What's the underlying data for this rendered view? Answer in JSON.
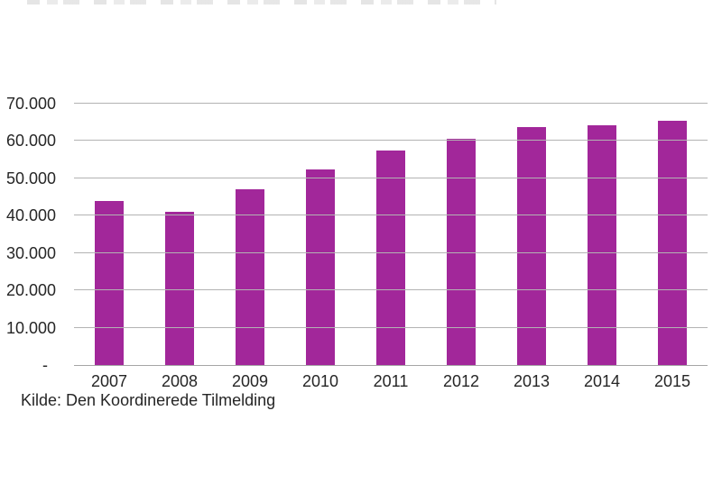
{
  "chart_data": {
    "type": "bar",
    "categories": [
      "2007",
      "2008",
      "2009",
      "2010",
      "2011",
      "2012",
      "2013",
      "2014",
      "2015"
    ],
    "values": [
      44000,
      41000,
      47000,
      52300,
      57400,
      60700,
      63800,
      64200,
      65300
    ],
    "title": "",
    "xlabel": "",
    "ylabel": "",
    "ylim": [
      0,
      70000
    ],
    "ytick_step": 10000,
    "ytick_labels_top_to_bottom": [
      "70.000",
      "60.000",
      "50.000",
      "40.000",
      "30.000",
      "20.000",
      "10.000",
      "-"
    ],
    "zero_tick_label": "-",
    "grid": true,
    "legend_position": "none",
    "source_note": "Kilde: Den Koordinerede Tilmelding",
    "colors": {
      "bar": "#a2279a",
      "gridline": "#b3b3b3",
      "axis_line": "#a6a6a6",
      "text": "#262626",
      "background": "#ffffff",
      "clipped_title_fragment": "#e6e6e6"
    }
  }
}
